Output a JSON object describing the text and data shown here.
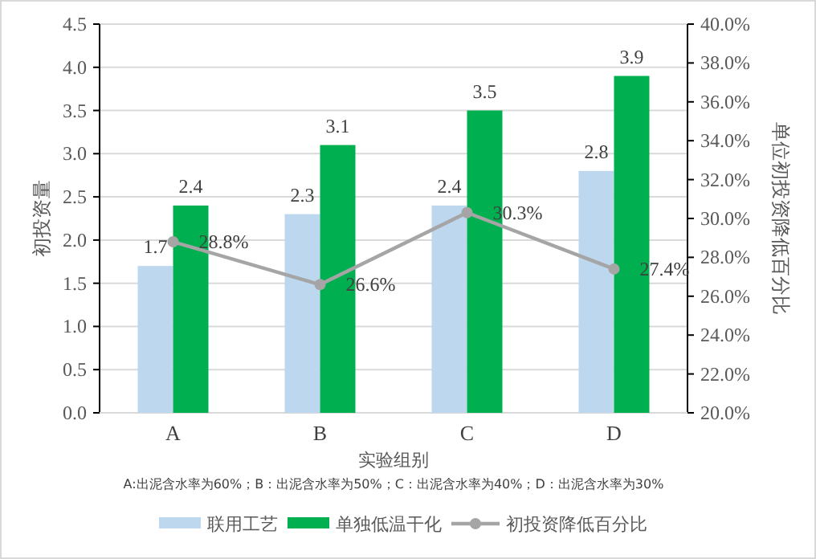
{
  "chart_data": {
    "type": "bar",
    "xlabel": "实验组别",
    "ylabel": "初投资量",
    "y2label": "单位初投资降低百分比",
    "categories": [
      "A",
      "B",
      "C",
      "D"
    ],
    "series": [
      {
        "name": "联用工艺",
        "color": "#bdd7ee",
        "values": [
          1.7,
          2.3,
          2.4,
          2.8
        ],
        "value_labels": [
          "1.7",
          "2.3",
          "2.4",
          "2.8"
        ]
      },
      {
        "name": "单独低温干化",
        "color": "#00b050",
        "values": [
          2.4,
          3.1,
          3.5,
          3.9
        ],
        "value_labels": [
          "2.4",
          "3.1",
          "3.5",
          "3.9"
        ]
      },
      {
        "name": "初投资降低百分比",
        "type": "line",
        "axis": "y2",
        "color": "#a5a5a5",
        "marker": "circle",
        "values": [
          28.8,
          26.6,
          30.3,
          27.4
        ],
        "value_labels": [
          "28.8%",
          "26.6%",
          "30.3%",
          "27.4%"
        ]
      }
    ],
    "ylim": [
      0,
      4.5
    ],
    "yticks": [
      "0.0",
      "0.5",
      "1.0",
      "1.5",
      "2.0",
      "2.5",
      "3.0",
      "3.5",
      "4.0",
      "4.5"
    ],
    "y2lim": [
      20,
      40
    ],
    "y2ticks": [
      {
        "value": 20,
        "label": "20.0%"
      },
      {
        "value": 22,
        "label": "22.0%"
      },
      {
        "value": 24,
        "label": "24.0%"
      },
      {
        "value": 26,
        "label": "26.0%"
      },
      {
        "value": 28,
        "label": "28.0%"
      },
      {
        "value": 30,
        "label": "30.0%"
      },
      {
        "value": 32,
        "label": "32.0%"
      },
      {
        "value": 34,
        "label": "34.0%"
      },
      {
        "value": 36,
        "label": "36.0%"
      },
      {
        "value": 38,
        "label": "38.0%"
      },
      {
        "value": 40,
        "label": "40.0%"
      }
    ],
    "grid": "y",
    "legend": "bottom",
    "annotations": [
      "A:出泥含水率为60%；B：出泥含水率为50%；C：出泥含水率为40%；D：出泥含水率为30%"
    ]
  }
}
